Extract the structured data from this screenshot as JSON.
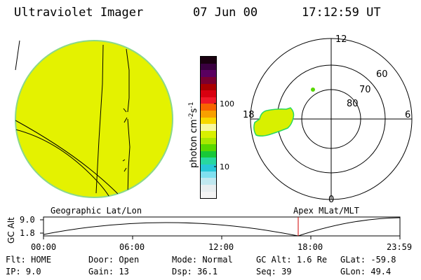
{
  "header": {
    "title": "Ultraviolet Imager",
    "date": "07 Jun 00",
    "time": "17:12:59 UT"
  },
  "colorbar": {
    "label": "photon cm",
    "exp1": "-2",
    "mid": "s",
    "exp2": "-1",
    "tick_100": "100",
    "tick_10": "10",
    "colors": [
      "#1a0010",
      "#3a0040",
      "#5a0060",
      "#7a0030",
      "#aa0000",
      "#d80010",
      "#f01828",
      "#f86400",
      "#f8a000",
      "#f8d800",
      "#f8f8a0",
      "#d8f000",
      "#a8e800",
      "#58d800",
      "#18c838",
      "#28d8a0",
      "#28c8d8",
      "#80e0f0",
      "#c0e8f0",
      "#e8eef0",
      "#f4f4f4"
    ],
    "fill_colors": {
      "earth": "#e4f200",
      "edge": "#8ad88a",
      "aurora": "#d8f000"
    }
  },
  "polar_plot": {
    "mlt_labels": {
      "top": "12",
      "left": "18",
      "right": "6",
      "bottom": "0"
    },
    "lat_labels": [
      "60",
      "70",
      "80"
    ]
  },
  "timeline": {
    "left_title": "Geographic Lat/Lon",
    "right_title": "Apex MLat/MLT",
    "axis_title": "GC Alt",
    "y_ticks": [
      "9.0",
      "1.8"
    ],
    "x_ticks": [
      "00:00",
      "06:00",
      "12:00",
      "18:00",
      "23:59"
    ],
    "marker_time": "17:12:59"
  },
  "status": {
    "flt_label": "Flt:",
    "flt_value": "HOME",
    "door_label": "Door:",
    "door_value": "Open",
    "mode_label": "Mode:",
    "mode_value": "Normal",
    "gcalt_label": "GC Alt:",
    "gcalt_value": "1.6 Re",
    "glat_label": "GLat:",
    "glat_value": "-59.8",
    "ip_label": "IP:",
    "ip_value": "9.0",
    "gain_label": "Gain:",
    "gain_value": "13",
    "dsp_label": "Dsp:",
    "dsp_value": "36.1",
    "seq_label": "Seq:",
    "seq_value": "39",
    "glon_label": "GLon:",
    "glon_value": "49.4"
  }
}
